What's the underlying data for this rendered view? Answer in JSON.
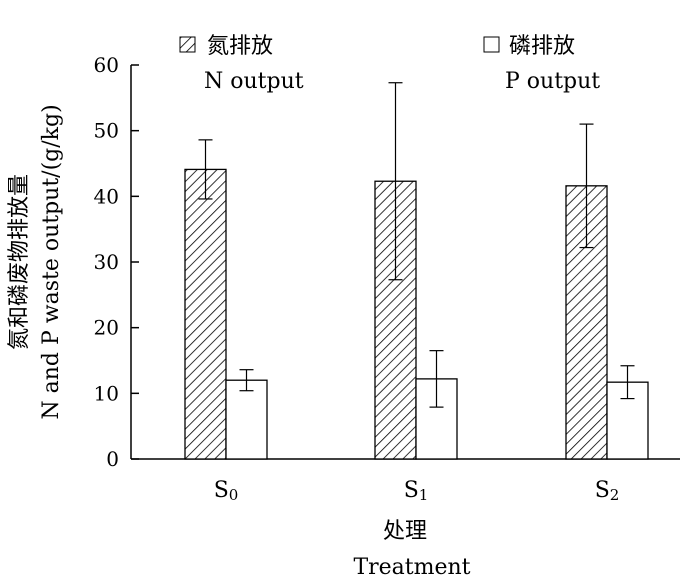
{
  "chart_data": {
    "type": "bar",
    "title": "",
    "categories": [
      {
        "base": "S",
        "sub": "0"
      },
      {
        "base": "S",
        "sub": "1"
      },
      {
        "base": "S",
        "sub": "2"
      }
    ],
    "series": [
      {
        "name_cn": "氮排放",
        "name_en": "N output",
        "pattern": "hatched",
        "values": [
          44.1,
          42.3,
          41.6
        ],
        "errors": [
          4.5,
          15.0,
          9.4
        ]
      },
      {
        "name_cn": "磷排放",
        "name_en": "P output",
        "pattern": "open",
        "values": [
          12.0,
          12.2,
          11.7
        ],
        "errors": [
          1.6,
          4.3,
          2.5
        ]
      }
    ],
    "xlabel_cn": "处理",
    "xlabel_en": "Treatment",
    "ylabel_cn": "氮和磷废物排放量",
    "ylabel_en": "N and P waste output/(g/kg)",
    "ylim": [
      0,
      60
    ],
    "yticks": [
      0,
      10,
      20,
      30,
      40,
      50,
      60
    ],
    "grid": false,
    "legend_position": "top"
  },
  "colors": {
    "bar_stroke": "#000000",
    "hatch": "#000000",
    "open_fill": "#ffffff",
    "axis": "#000000"
  }
}
